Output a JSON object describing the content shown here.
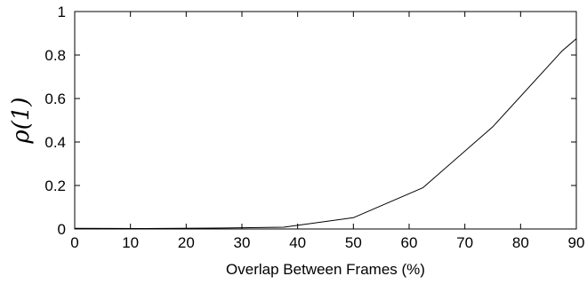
{
  "chart_data": {
    "type": "line",
    "title": "",
    "xlabel": "Overlap Between Frames (%)",
    "ylabel": "ρ(1)",
    "xlim": [
      0,
      90
    ],
    "ylim": [
      0,
      1
    ],
    "xticks": [
      0,
      10,
      20,
      30,
      40,
      50,
      60,
      70,
      80,
      90
    ],
    "yticks": [
      0,
      0.2,
      0.4,
      0.6,
      0.8,
      1
    ],
    "xtick_labels": [
      "0",
      "10",
      "20",
      "30",
      "40",
      "50",
      "60",
      "70",
      "80",
      "90"
    ],
    "ytick_labels": [
      "0",
      "0.2",
      "0.4",
      "0.6",
      "0.8",
      "1"
    ],
    "grid": false,
    "line_color": "#000000",
    "series": [
      {
        "x": [
          0,
          12.5,
          25,
          37.5,
          50,
          62.5,
          75,
          87.5,
          90
        ],
        "y": [
          0.003,
          0.002,
          0.004,
          0.008,
          0.052,
          0.19,
          0.47,
          0.82,
          0.875
        ]
      }
    ]
  }
}
